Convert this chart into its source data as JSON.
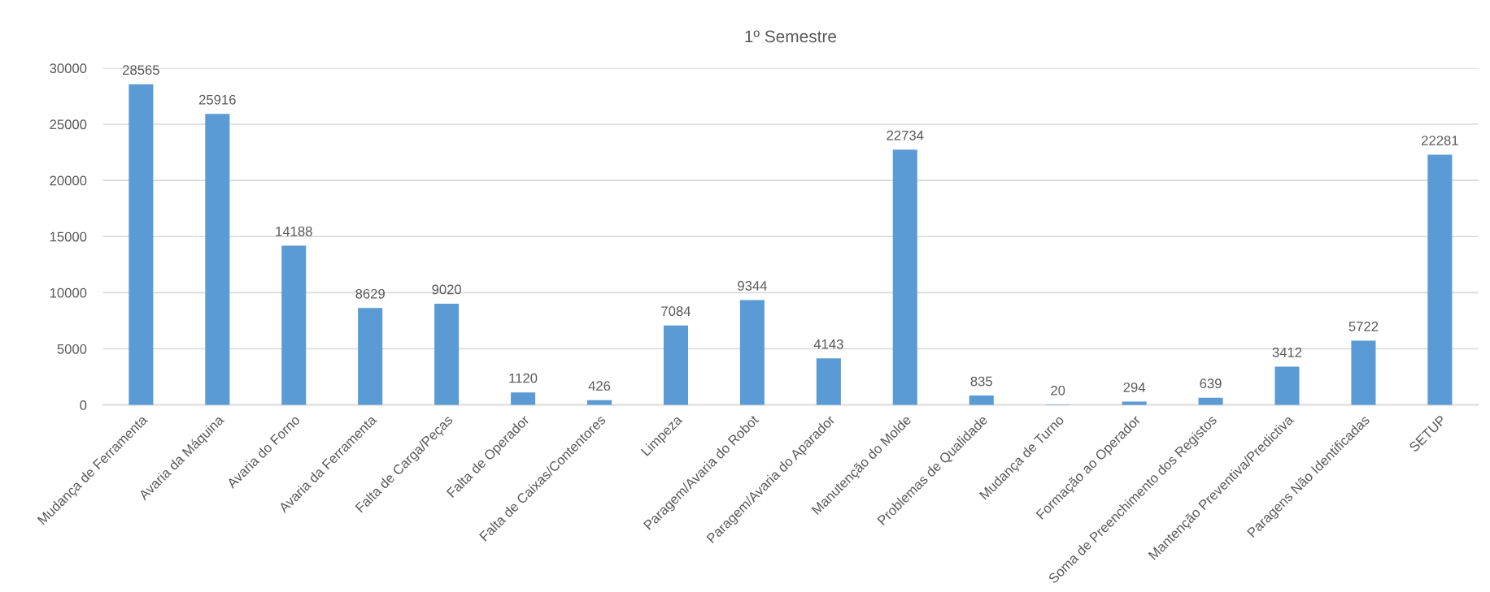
{
  "chart_data": {
    "type": "bar",
    "title": "1º Semestre",
    "categories": [
      "Mudança de Ferramenta",
      "Avaria da Máquina",
      "Avaria do Forno",
      "Avaria da Ferramenta",
      "Falta de Carga/Peças",
      "Falta de Operador",
      "Falta de Caixas/Contentores",
      "Limpeza",
      "Paragem/Avaria do Robot",
      "Paragem/Avaria do Aparador",
      "Manutenção do Molde",
      "Problemas de Qualidade",
      "Mudança de Turno",
      "Formação ao Operador",
      "Soma de Preenchimento dos Registos",
      "Mantenção Preventiva/Predictiva",
      "Paragens Não Identificadas",
      "SETUP"
    ],
    "values": [
      28565,
      25916,
      14188,
      8629,
      9020,
      1120,
      426,
      7084,
      9344,
      4143,
      22734,
      835,
      20,
      294,
      639,
      3412,
      5722,
      22281
    ],
    "color": "#5b9bd5",
    "ylim": [
      0,
      30000
    ],
    "yticks": [
      0,
      5000,
      10000,
      15000,
      20000,
      25000,
      30000
    ],
    "grid": "y",
    "data_labels": true
  }
}
